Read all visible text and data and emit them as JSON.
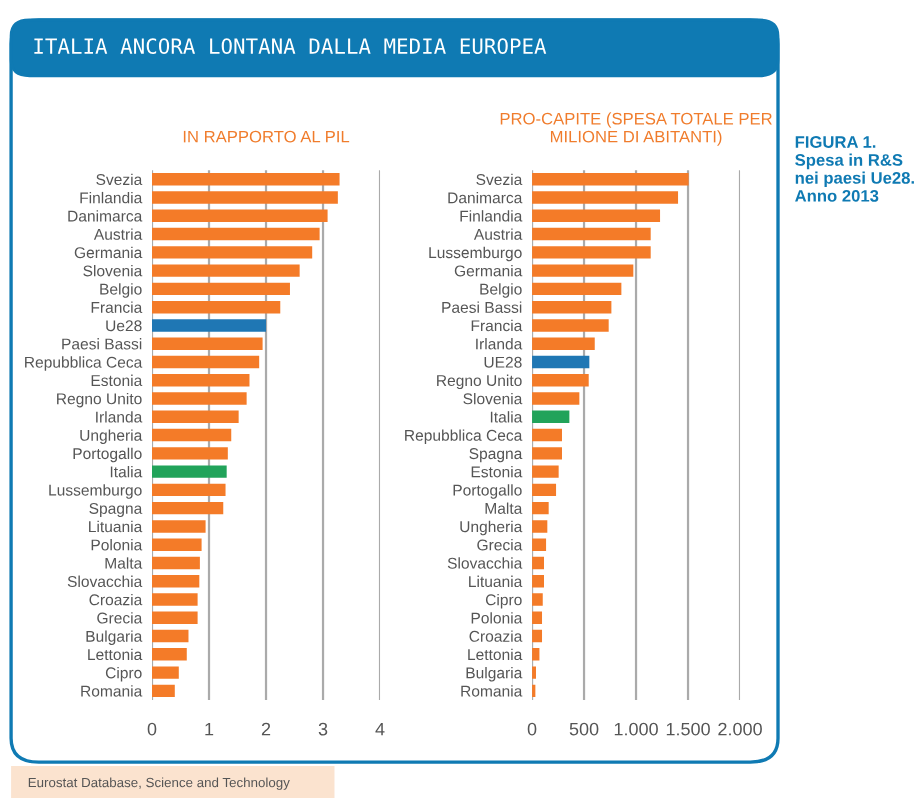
{
  "chart_data": [
    {
      "type": "bar",
      "orientation": "horizontal",
      "title": "IN RAPPORTO AL PIL",
      "categories": [
        "Svezia",
        "Finlandia",
        "Danimarca",
        "Austria",
        "Germania",
        "Slovenia",
        "Belgio",
        "Francia",
        "Ue28",
        "Paesi Bassi",
        "Repubblica Ceca",
        "Estonia",
        "Regno Unito",
        "Irlanda",
        "Ungheria",
        "Portogallo",
        "Italia",
        "Lussemburgo",
        "Spagna",
        "Lituania",
        "Polonia",
        "Malta",
        "Slovacchia",
        "Croazia",
        "Grecia",
        "Bulgaria",
        "Lettonia",
        "Cipro",
        "Romania"
      ],
      "values": [
        3.29,
        3.26,
        3.08,
        2.94,
        2.81,
        2.59,
        2.42,
        2.25,
        2.0,
        1.94,
        1.88,
        1.71,
        1.66,
        1.52,
        1.39,
        1.33,
        1.31,
        1.29,
        1.25,
        0.94,
        0.87,
        0.84,
        0.83,
        0.8,
        0.8,
        0.64,
        0.61,
        0.47,
        0.4
      ],
      "colors": [
        "#f47b28",
        "#f47b28",
        "#f47b28",
        "#f47b28",
        "#f47b28",
        "#f47b28",
        "#f47b28",
        "#f47b28",
        "#1f77b4",
        "#f47b28",
        "#f47b28",
        "#f47b28",
        "#f47b28",
        "#f47b28",
        "#f47b28",
        "#f47b28",
        "#21a35a",
        "#f47b28",
        "#f47b28",
        "#f47b28",
        "#f47b28",
        "#f47b28",
        "#f47b28",
        "#f47b28",
        "#f47b28",
        "#f47b28",
        "#f47b28",
        "#f47b28",
        "#f47b28"
      ],
      "xlim": [
        0,
        4
      ],
      "xticks": [
        0,
        1,
        2,
        3,
        4
      ],
      "grid": "x",
      "annotations": [
        "ITALIA ANCORA LONTANA DALLA MEDIA EUROPEA",
        "FIGURA 1.\nSpesa in R&S\nnei paesi Ue28.\nAnno 2013",
        "Eurostat Database, Science and Technology"
      ]
    },
    {
      "type": "bar",
      "orientation": "horizontal",
      "title": "PRO-CAPITE (SPESA TOTALE PER\nMILIONE DI ABITANTI)",
      "categories": [
        "Svezia",
        "Danimarca",
        "Finlandia",
        "Austria",
        "Lussemburgo",
        "Germania",
        "Belgio",
        "Paesi Bassi",
        "Francia",
        "Irlanda",
        "UE28",
        "Regno Unito",
        "Slovenia",
        "Italia",
        "Repubblica Ceca",
        "Spagna",
        "Estonia",
        "Portogallo",
        "Malta",
        "Ungheria",
        "Grecia",
        "Slovacchia",
        "Lituania",
        "Cipro",
        "Polonia",
        "Croazia",
        "Lettonia",
        "Bulgaria",
        "Romania"
      ],
      "values": [
        1506,
        1404,
        1231,
        1141,
        1141,
        974,
        859,
        763,
        737,
        603,
        551,
        545,
        455,
        359,
        288,
        288,
        256,
        231,
        160,
        147,
        135,
        115,
        115,
        103,
        96,
        96,
        71,
        38,
        32
      ],
      "colors": [
        "#f47b28",
        "#f47b28",
        "#f47b28",
        "#f47b28",
        "#f47b28",
        "#f47b28",
        "#f47b28",
        "#f47b28",
        "#f47b28",
        "#f47b28",
        "#1f77b4",
        "#f47b28",
        "#f47b28",
        "#21a35a",
        "#f47b28",
        "#f47b28",
        "#f47b28",
        "#f47b28",
        "#f47b28",
        "#f47b28",
        "#f47b28",
        "#f47b28",
        "#f47b28",
        "#f47b28",
        "#f47b28",
        "#f47b28",
        "#f47b28",
        "#f47b28",
        "#f47b28"
      ],
      "xlim": [
        0,
        2000
      ],
      "xticks": [
        0,
        500,
        {
          "value": 1000,
          "label": "1.000"
        },
        {
          "value": 1500,
          "label": "1.500"
        },
        {
          "value": 2000,
          "label": "2.000"
        }
      ],
      "grid": "x"
    }
  ]
}
